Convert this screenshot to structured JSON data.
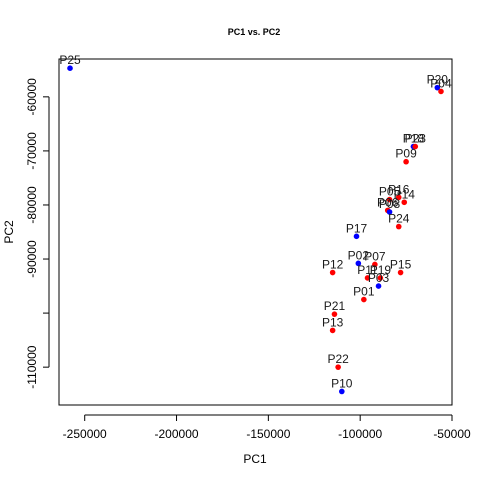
{
  "chart_data": {
    "type": "scatter",
    "title": "PC1 vs. PC2",
    "xlabel": "PC1",
    "ylabel": "PC2",
    "xlim": [
      -264000,
      -50000
    ],
    "ylim": [
      -117000,
      -53000
    ],
    "xticks": [
      -250000,
      -200000,
      -150000,
      -100000,
      -50000
    ],
    "yticks": [
      -110000,
      -100000,
      -90000,
      -80000,
      -70000,
      -60000
    ],
    "xtick_labels": [
      "-250000",
      "-200000",
      "-150000",
      "-100000",
      "-50000"
    ],
    "ytick_labels": [
      "-110000",
      "",
      "-90000",
      "-80000",
      "-70000",
      "-60000"
    ],
    "grid": false,
    "colors": {
      "blue": "#0000ff",
      "red": "#ff0000"
    },
    "points": [
      {
        "label": "P25",
        "x": -258000,
        "y": -54700,
        "color": "blue"
      },
      {
        "label": "P20",
        "x": -58000,
        "y": -58300,
        "color": "blue"
      },
      {
        "label": "P04",
        "x": -56000,
        "y": -59000,
        "color": "red"
      },
      {
        "label": "P18",
        "x": -71000,
        "y": -69200,
        "color": "blue"
      },
      {
        "label": "P23",
        "x": -70000,
        "y": -69200,
        "color": "red"
      },
      {
        "label": "P09",
        "x": -75000,
        "y": -72000,
        "color": "red"
      },
      {
        "label": "P05",
        "x": -84000,
        "y": -79000,
        "color": "red"
      },
      {
        "label": "P16",
        "x": -79000,
        "y": -78600,
        "color": "red"
      },
      {
        "label": "P14",
        "x": -76000,
        "y": -79500,
        "color": "red"
      },
      {
        "label": "P06",
        "x": -85000,
        "y": -81000,
        "color": "red"
      },
      {
        "label": "P08",
        "x": -84000,
        "y": -81300,
        "color": "blue"
      },
      {
        "label": "P24",
        "x": -79000,
        "y": -84000,
        "color": "red"
      },
      {
        "label": "P17",
        "x": -102000,
        "y": -85800,
        "color": "blue"
      },
      {
        "label": "P02",
        "x": -101000,
        "y": -90800,
        "color": "blue"
      },
      {
        "label": "P07",
        "x": -92000,
        "y": -91000,
        "color": "red"
      },
      {
        "label": "P12",
        "x": -115000,
        "y": -92500,
        "color": "red"
      },
      {
        "label": "P15",
        "x": -78000,
        "y": -92500,
        "color": "red"
      },
      {
        "label": "P11",
        "x": -96000,
        "y": -93500,
        "color": "red"
      },
      {
        "label": "P19",
        "x": -89000,
        "y": -93500,
        "color": "red"
      },
      {
        "label": "P03",
        "x": -90000,
        "y": -95000,
        "color": "blue"
      },
      {
        "label": "P01",
        "x": -98000,
        "y": -97500,
        "color": "red"
      },
      {
        "label": "P21",
        "x": -114000,
        "y": -100200,
        "color": "red"
      },
      {
        "label": "P13",
        "x": -115000,
        "y": -103200,
        "color": "red"
      },
      {
        "label": "P22",
        "x": -112000,
        "y": -110000,
        "color": "red"
      },
      {
        "label": "P10",
        "x": -110000,
        "y": -114500,
        "color": "blue"
      }
    ]
  }
}
